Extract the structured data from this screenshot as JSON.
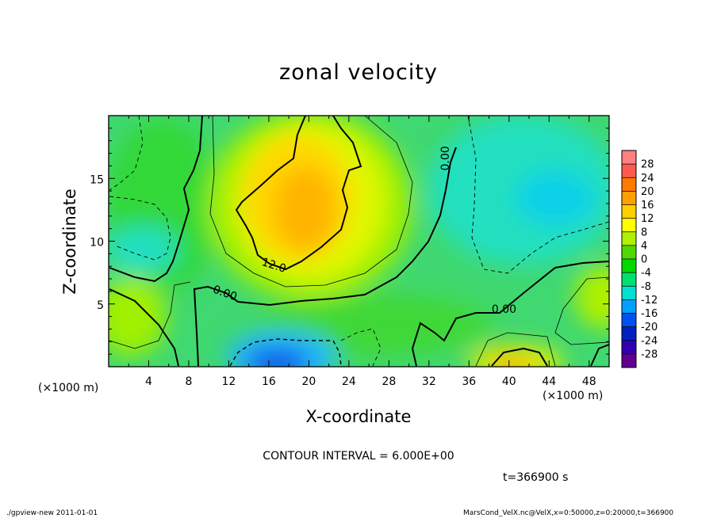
{
  "figure": {
    "title": "zonal velocity",
    "contour_interval": "CONTOUR INTERVAL = 6.000E+00",
    "time_label": "t=366900 s",
    "footer_left": "./gpview-new  2011-01-01",
    "footer_right": "MarsCond_VelX.nc@VelX,x=0:50000,z=0:20000,t=366900"
  },
  "chart_data": {
    "type": "heatmap",
    "title": "zonal velocity",
    "xlabel": "X-coordinate",
    "ylabel": "Z-coordinate",
    "x_unit_left": "(×1000 m)",
    "x_unit_right": "(×1000 m)",
    "xlim": [
      0,
      50
    ],
    "ylim": [
      0,
      20
    ],
    "x_ticks": [
      4,
      8,
      12,
      16,
      20,
      24,
      28,
      32,
      36,
      40,
      44,
      48
    ],
    "y_ticks": [
      5,
      10,
      15
    ],
    "contour_labels": [
      {
        "text": "0.00",
        "x": 11.5,
        "z": 5.6
      },
      {
        "text": "12.0",
        "x": 16.4,
        "z": 7.8
      },
      {
        "text": "0.00",
        "x": 34,
        "z": 16.6
      },
      {
        "text": "0.00",
        "x": 39.5,
        "z": 4.3
      }
    ],
    "colorbar": {
      "levels": [
        28,
        24,
        20,
        16,
        12,
        8,
        4,
        0,
        -4,
        -8,
        -12,
        -16,
        -20,
        -24,
        -28
      ],
      "colors": [
        "#ff8080",
        "#ff5a50",
        "#ff7a00",
        "#ffa000",
        "#ffd000",
        "#ffff00",
        "#b0f000",
        "#50d800",
        "#00d800",
        "#00e070",
        "#00e0d0",
        "#00a0ff",
        "#0050f0",
        "#0020c0",
        "#3000b0",
        "#600090"
      ]
    },
    "field_features": [
      {
        "kind": "max",
        "x": 19,
        "z": 13,
        "value": 14
      },
      {
        "kind": "min",
        "x": 19,
        "z": 1,
        "value": -16
      },
      {
        "kind": "max",
        "x": 41,
        "z": 0.5,
        "value": 10
      },
      {
        "kind": "min",
        "x": 45,
        "z": 13.5,
        "value": -10
      },
      {
        "kind": "min",
        "x": 4,
        "z": 9,
        "value": -8
      },
      {
        "kind": "max",
        "x": 2,
        "z": 3,
        "value": 6
      },
      {
        "kind": "max",
        "x": 49,
        "z": 5,
        "value": 6
      }
    ]
  }
}
